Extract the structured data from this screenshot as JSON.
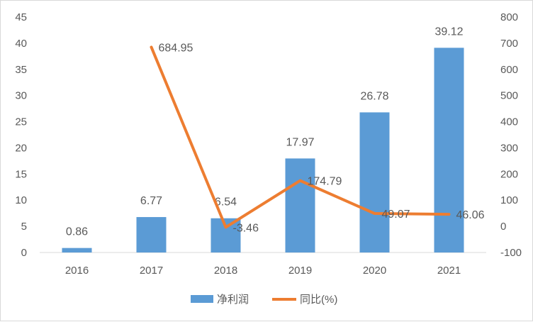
{
  "chart_data": {
    "type": "bar+line",
    "title": "",
    "categories": [
      "2016",
      "2017",
      "2018",
      "2019",
      "2020",
      "2021"
    ],
    "series": [
      {
        "name": "净利润",
        "type": "bar",
        "axis": "left",
        "color": "#5B9BD5",
        "values": [
          0.86,
          6.77,
          6.54,
          17.97,
          26.78,
          39.12
        ]
      },
      {
        "name": "同比(%)",
        "type": "line",
        "axis": "right",
        "color": "#ED7D31",
        "values": [
          null,
          684.95,
          -3.46,
          174.79,
          49.07,
          46.06
        ]
      }
    ],
    "y_left": {
      "min": 0,
      "max": 45,
      "step": 5
    },
    "y_right": {
      "min": -100,
      "max": 800,
      "step": 100
    },
    "grid": false,
    "legend_position": "bottom"
  }
}
